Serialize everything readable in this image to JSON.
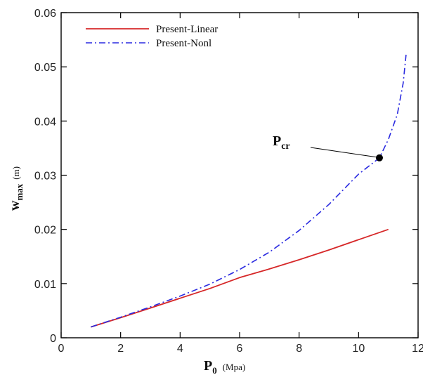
{
  "chart_data": {
    "type": "line",
    "xlabel": {
      "main": "P",
      "sub": "0",
      "unit": "(Mpa)"
    },
    "ylabel": {
      "main": "w",
      "sub": "max",
      "unit": "(m)"
    },
    "xlim": [
      0,
      12
    ],
    "ylim": [
      0,
      0.06
    ],
    "xticks": [
      0,
      2,
      4,
      6,
      8,
      10,
      12
    ],
    "yticks": [
      0,
      0.01,
      0.02,
      0.03,
      0.04,
      0.05,
      0.06
    ],
    "xtick_labels": [
      "0",
      "2",
      "4",
      "6",
      "8",
      "10",
      "12"
    ],
    "ytick_labels": [
      "0",
      "0.01",
      "0.02",
      "0.03",
      "0.04",
      "0.05",
      "0.06"
    ],
    "legend_position": "top-left",
    "grid": false,
    "series": [
      {
        "name": "Present-Linear",
        "color": "#d62728",
        "style": "solid",
        "x": [
          1,
          2,
          3,
          4,
          5,
          6,
          7,
          8,
          9,
          10,
          11
        ],
        "y": [
          0.002,
          0.0037,
          0.0055,
          0.0073,
          0.0091,
          0.0111,
          0.0127,
          0.0144,
          0.0162,
          0.0181,
          0.02
        ]
      },
      {
        "name": "Present-Nonl",
        "color": "#2a2ae0",
        "style": "dashdot",
        "x": [
          1,
          2,
          3,
          4,
          5,
          6,
          7,
          8,
          9,
          10,
          10.7,
          11,
          11.3,
          11.5,
          11.6
        ],
        "y": [
          0.002,
          0.0038,
          0.0057,
          0.0077,
          0.0099,
          0.0126,
          0.0158,
          0.0198,
          0.0246,
          0.0302,
          0.0332,
          0.0366,
          0.0412,
          0.047,
          0.0525
        ]
      }
    ],
    "annotations": [
      {
        "label_main": "P",
        "label_sub": "cr",
        "x": 10.7,
        "y": 0.0332
      }
    ]
  }
}
